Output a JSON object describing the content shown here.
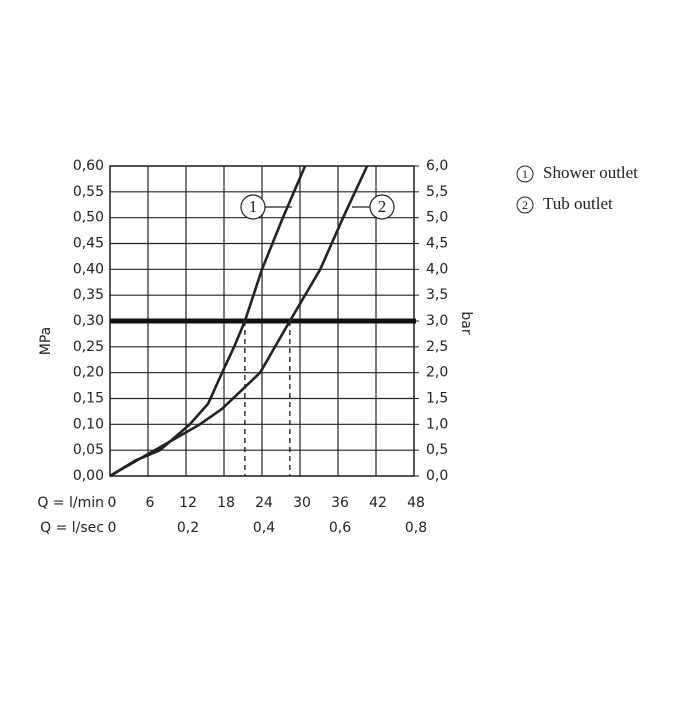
{
  "chart_data": {
    "type": "line",
    "xlabel": "Q = l/min",
    "x2label": "Q = l/sec",
    "ylabel": "MPa",
    "y2label": "bar",
    "xlim": [
      0,
      48
    ],
    "xticks": [
      0,
      6,
      12,
      18,
      24,
      30,
      36,
      42,
      48
    ],
    "x2lim": [
      0,
      0.8
    ],
    "x2ticks": [
      {
        "value": 0,
        "label": "0"
      },
      {
        "value": 0.2,
        "label": "0,2"
      },
      {
        "value": 0.4,
        "label": "0,4"
      },
      {
        "value": 0.6,
        "label": "0,6"
      },
      {
        "value": 0.8,
        "label": "0,8"
      }
    ],
    "ylim": [
      0,
      0.6
    ],
    "yticks": [
      {
        "value": 0,
        "label": "0,00"
      },
      {
        "value": 0.05,
        "label": "0,05"
      },
      {
        "value": 0.1,
        "label": "0,10"
      },
      {
        "value": 0.15,
        "label": "0,15"
      },
      {
        "value": 0.2,
        "label": "0,20"
      },
      {
        "value": 0.25,
        "label": "0,25"
      },
      {
        "value": 0.3,
        "label": "0,30"
      },
      {
        "value": 0.35,
        "label": "0,35"
      },
      {
        "value": 0.4,
        "label": "0,40"
      },
      {
        "value": 0.45,
        "label": "0,45"
      },
      {
        "value": 0.5,
        "label": "0,50"
      },
      {
        "value": 0.55,
        "label": "0,55"
      },
      {
        "value": 0.6,
        "label": "0,60"
      }
    ],
    "y2lim": [
      0,
      6
    ],
    "y2ticks": [
      {
        "value": 0,
        "label": "0,0"
      },
      {
        "value": 0.5,
        "label": "0,5"
      },
      {
        "value": 1,
        "label": "1,0"
      },
      {
        "value": 1.5,
        "label": "1,5"
      },
      {
        "value": 2,
        "label": "2,0"
      },
      {
        "value": 2.5,
        "label": "2,5"
      },
      {
        "value": 3,
        "label": "3,0"
      },
      {
        "value": 3.5,
        "label": "3,5"
      },
      {
        "value": 4,
        "label": "4,0"
      },
      {
        "value": 4.5,
        "label": "4,5"
      },
      {
        "value": 5,
        "label": "5,0"
      },
      {
        "value": 5.5,
        "label": "5,5"
      },
      {
        "value": 6,
        "label": "6,0"
      }
    ],
    "grid": true,
    "reference_line": 0.3,
    "operating_points": [
      21.3,
      28.4
    ],
    "series": [
      {
        "name": "Shower outlet",
        "label": "1",
        "color": "#222222",
        "x": [
          0,
          4,
          7.9,
          12.6,
          15.5,
          17.7,
          19.6,
          21.3,
          24,
          27.3,
          30.8
        ],
        "values": [
          0,
          0.03,
          0.05,
          0.1,
          0.14,
          0.2,
          0.25,
          0.3,
          0.4,
          0.5,
          0.6
        ]
      },
      {
        "name": "Tub outlet",
        "label": "2",
        "color": "#222222",
        "x": [
          0,
          3.5,
          7.1,
          14.2,
          17.7,
          23.7,
          28.4,
          33.2,
          36.8,
          40.6
        ],
        "values": [
          0,
          0.025,
          0.05,
          0.1,
          0.13,
          0.2,
          0.3,
          0.4,
          0.5,
          0.6
        ]
      }
    ]
  }
}
